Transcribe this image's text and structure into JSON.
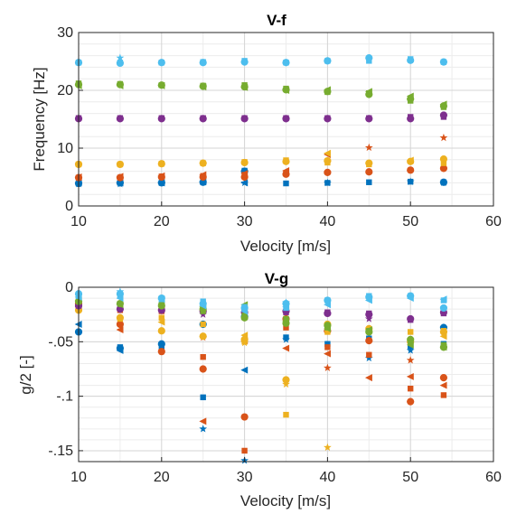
{
  "colors": {
    "blue": "#0072BD",
    "orange": "#D95319",
    "yellow": "#EDB120",
    "purple": "#7E2F8E",
    "green": "#77AC30",
    "cyan": "#4DBEEE"
  },
  "chart_data": [
    {
      "type": "scatter",
      "title": "V-f",
      "xlabel": "Velocity [m/s]",
      "ylabel": "Frequency [Hz]",
      "xlim": [
        10,
        60
      ],
      "ylim": [
        0,
        30
      ],
      "xticks": [
        10,
        20,
        30,
        40,
        50,
        60
      ],
      "yticks": [
        0,
        10,
        20,
        30
      ],
      "grid": true,
      "x": [
        10,
        15,
        20,
        25,
        30,
        35,
        40,
        45,
        50,
        54
      ],
      "points": [
        {
          "color": "blue",
          "marker": "circle",
          "y": [
            3.9,
            4.0,
            4.0,
            4.1,
            6.0,
            null,
            null,
            null,
            null,
            4.1
          ]
        },
        {
          "color": "blue",
          "marker": "square",
          "y": [
            3.9,
            4.0,
            4.0,
            4.1,
            6.1,
            3.9,
            4.0,
            4.1,
            4.2,
            4.1
          ]
        },
        {
          "color": "blue",
          "marker": "triangle",
          "y": [
            4.0,
            4.0,
            4.0,
            4.2,
            4.0,
            null,
            null,
            null,
            null,
            null
          ]
        },
        {
          "color": "blue",
          "marker": "star",
          "y": [
            3.8,
            3.8,
            4.0,
            4.1,
            4.0,
            null,
            4.0,
            null,
            4.2,
            4.0
          ]
        },
        {
          "color": "orange",
          "marker": "circle",
          "y": [
            4.9,
            4.9,
            5.0,
            5.0,
            5.0,
            5.5,
            5.8,
            5.9,
            6.2,
            6.5
          ]
        },
        {
          "color": "orange",
          "marker": "square",
          "y": [
            4.9,
            4.9,
            5.1,
            5.2,
            5.4,
            5.7,
            null,
            null,
            null,
            null
          ]
        },
        {
          "color": "orange",
          "marker": "triangle",
          "y": [
            5.0,
            5.1,
            5.2,
            5.4,
            5.6,
            6.1,
            8.9,
            null,
            null,
            null
          ]
        },
        {
          "color": "orange",
          "marker": "star",
          "y": [
            null,
            null,
            null,
            null,
            null,
            null,
            null,
            10.1,
            null,
            11.8
          ]
        },
        {
          "color": "yellow",
          "marker": "circle",
          "y": [
            7.2,
            7.2,
            7.3,
            7.4,
            7.5,
            7.7,
            7.8,
            7.4,
            7.7,
            8.1
          ]
        },
        {
          "color": "yellow",
          "marker": "square",
          "y": [
            7.2,
            7.2,
            7.3,
            7.4,
            7.6,
            7.9,
            7.5,
            7.2,
            null,
            7.4
          ]
        },
        {
          "color": "yellow",
          "marker": "triangle",
          "y": [
            null,
            null,
            null,
            null,
            null,
            null,
            9.1,
            null,
            7.9,
            null
          ]
        },
        {
          "color": "purple",
          "marker": "circle",
          "y": [
            15.1,
            15.1,
            15.1,
            15.1,
            15.1,
            15.1,
            15.1,
            15.1,
            15.1,
            15.7
          ]
        },
        {
          "color": "purple",
          "marker": "square",
          "y": [
            15.2,
            15.2,
            15.2,
            15.2,
            15.2,
            15.2,
            15.2,
            15.2,
            15.4,
            15.4
          ]
        },
        {
          "color": "green",
          "marker": "circle",
          "y": [
            21.0,
            21.0,
            20.9,
            20.7,
            20.6,
            20.1,
            19.8,
            19.3,
            18.5,
            17.3
          ]
        },
        {
          "color": "green",
          "marker": "square",
          "y": [
            21.2,
            21.1,
            20.9,
            20.8,
            20.9,
            20.3,
            19.7,
            19.5,
            18.2,
            17.1
          ]
        },
        {
          "color": "green",
          "marker": "triangle",
          "y": [
            20.8,
            20.8,
            20.8,
            20.6,
            20.5,
            20.0,
            20.1,
            19.8,
            19.0,
            17.6
          ]
        },
        {
          "color": "cyan",
          "marker": "circle",
          "y": [
            24.8,
            24.7,
            24.8,
            24.8,
            24.9,
            24.8,
            25.1,
            25.6,
            25.2,
            24.9
          ]
        },
        {
          "color": "cyan",
          "marker": "square",
          "y": [
            24.8,
            24.8,
            24.8,
            24.9,
            25.1,
            24.8,
            25.1,
            25.1,
            25.4,
            24.9
          ]
        },
        {
          "color": "cyan",
          "marker": "star",
          "y": [
            null,
            25.6,
            null,
            null,
            null,
            null,
            null,
            null,
            null,
            null
          ]
        }
      ]
    },
    {
      "type": "scatter",
      "title": "V-g",
      "xlabel": "Velocity [m/s]",
      "ylabel": "g/2 [-]",
      "xlim": [
        10,
        60
      ],
      "ylim": [
        -0.16,
        0
      ],
      "xticks": [
        10,
        20,
        30,
        40,
        50,
        60
      ],
      "yticks": [
        0,
        -0.05,
        -0.1,
        -0.15
      ],
      "grid": true,
      "x": [
        10,
        15,
        20,
        25,
        30,
        35,
        40,
        45,
        50,
        54
      ],
      "points": [
        {
          "color": "blue",
          "marker": "circle",
          "y": [
            -0.041,
            -0.056,
            -0.052,
            -0.034,
            -0.027,
            null,
            null,
            null,
            null,
            -0.037
          ]
        },
        {
          "color": "blue",
          "marker": "square",
          "y": [
            null,
            -0.055,
            -0.055,
            -0.101,
            null,
            -0.046,
            -0.052,
            -0.047,
            -0.054,
            -0.052
          ]
        },
        {
          "color": "blue",
          "marker": "triangle",
          "y": [
            -0.034,
            -0.058,
            null,
            null,
            -0.076,
            null,
            null,
            null,
            null,
            null
          ]
        },
        {
          "color": "blue",
          "marker": "star",
          "y": [
            null,
            null,
            null,
            -0.13,
            -0.159,
            -0.048,
            null,
            -0.065,
            -0.058,
            -0.037
          ]
        },
        {
          "color": "orange",
          "marker": "circle",
          "y": [
            -0.015,
            -0.034,
            -0.059,
            -0.075,
            -0.119,
            -0.029,
            -0.04,
            -0.049,
            -0.105,
            -0.083
          ]
        },
        {
          "color": "orange",
          "marker": "square",
          "y": [
            -0.02,
            -0.021,
            -0.022,
            -0.064,
            -0.15,
            -0.037,
            -0.055,
            -0.062,
            -0.093,
            -0.099
          ]
        },
        {
          "color": "orange",
          "marker": "triangle",
          "y": [
            -0.018,
            -0.039,
            -0.02,
            -0.123,
            -0.049,
            -0.056,
            -0.061,
            -0.083,
            -0.082,
            -0.09
          ]
        },
        {
          "color": "orange",
          "marker": "star",
          "y": [
            null,
            null,
            null,
            -0.046,
            null,
            null,
            -0.074,
            null,
            -0.067,
            null
          ]
        },
        {
          "color": "yellow",
          "marker": "circle",
          "y": [
            -0.021,
            -0.028,
            -0.04,
            -0.045,
            -0.048,
            -0.085,
            -0.034,
            -0.038,
            -0.05,
            -0.041
          ]
        },
        {
          "color": "yellow",
          "marker": "square",
          "y": [
            -0.02,
            -0.029,
            -0.028,
            -0.034,
            -0.05,
            -0.117,
            -0.041,
            -0.04,
            -0.041,
            -0.04
          ]
        },
        {
          "color": "yellow",
          "marker": "triangle",
          "y": [
            null,
            null,
            -0.032,
            null,
            -0.044,
            null,
            null,
            null,
            null,
            -0.045
          ]
        },
        {
          "color": "yellow",
          "marker": "star",
          "y": [
            null,
            null,
            null,
            -0.022,
            -0.051,
            -0.089,
            -0.147,
            null,
            null,
            null
          ]
        },
        {
          "color": "purple",
          "marker": "circle",
          "y": [
            -0.017,
            -0.02,
            -0.021,
            -0.022,
            -0.023,
            -0.022,
            -0.024,
            -0.025,
            -0.029,
            -0.023
          ]
        },
        {
          "color": "purple",
          "marker": "square",
          "y": [
            -0.017,
            -0.019,
            -0.021,
            -0.021,
            -0.022,
            -0.023,
            -0.023,
            -0.024,
            -0.03,
            -0.024
          ]
        },
        {
          "color": "purple",
          "marker": "star",
          "y": [
            null,
            null,
            null,
            -0.025,
            null,
            null,
            null,
            -0.029,
            null,
            null
          ]
        },
        {
          "color": "green",
          "marker": "circle",
          "y": [
            -0.013,
            -0.015,
            -0.017,
            -0.02,
            -0.028,
            -0.033,
            -0.035,
            -0.041,
            -0.048,
            -0.055
          ]
        },
        {
          "color": "green",
          "marker": "square",
          "y": [
            -0.011,
            -0.015,
            -0.016,
            -0.022,
            -0.026,
            -0.029,
            -0.037,
            -0.04,
            -0.051,
            -0.053
          ]
        },
        {
          "color": "green",
          "marker": "triangle",
          "y": [
            -0.012,
            -0.016,
            -0.015,
            -0.018,
            -0.016,
            -0.031,
            -0.038,
            -0.039,
            -0.053,
            -0.055
          ]
        },
        {
          "color": "cyan",
          "marker": "circle",
          "y": [
            -0.006,
            -0.006,
            -0.01,
            -0.015,
            -0.019,
            -0.015,
            -0.012,
            -0.009,
            -0.008,
            -0.019
          ]
        },
        {
          "color": "cyan",
          "marker": "square",
          "y": [
            -0.008,
            -0.008,
            -0.011,
            -0.013,
            -0.018,
            -0.019,
            -0.012,
            -0.008,
            -0.008,
            -0.012
          ]
        },
        {
          "color": "cyan",
          "marker": "triangle",
          "y": [
            -0.009,
            -0.01,
            -0.011,
            -0.017,
            -0.022,
            -0.018,
            -0.016,
            -0.012,
            -0.01,
            -0.011
          ]
        },
        {
          "color": "cyan",
          "marker": "star",
          "y": [
            null,
            -0.004,
            null,
            null,
            null,
            -0.014,
            null,
            null,
            null,
            null
          ]
        }
      ]
    }
  ]
}
